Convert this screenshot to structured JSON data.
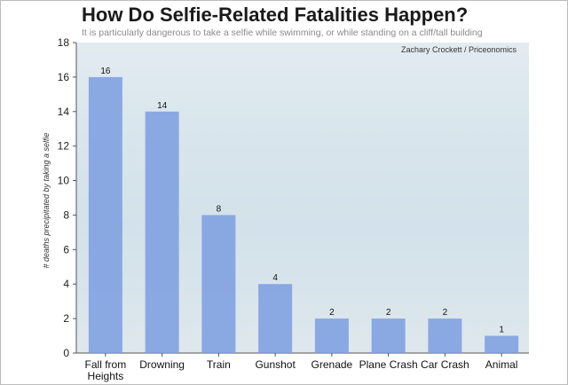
{
  "chart_data": {
    "type": "bar",
    "title": "How Do Selfie-Related Fatalities Happen?",
    "subtitle": "It is particularly dangerous to take a selfie while swimming, or while standing on a cliff/tall building",
    "source": "Zachary Crockett / Priceonomics",
    "xlabel": "",
    "ylabel": "# deaths precipitated by taking a selfie",
    "ylim": [
      0,
      18
    ],
    "yticks": [
      0,
      2,
      4,
      6,
      8,
      10,
      12,
      14,
      16,
      18
    ],
    "grid": false,
    "bar_color": "#7b9ee0",
    "categories": [
      "Fall from Heights",
      "Drowning",
      "Train",
      "Gunshot",
      "Grenade",
      "Plane Crash",
      "Car Crash",
      "Animal"
    ],
    "category_lines": [
      [
        "Fall from",
        "Heights"
      ],
      [
        "Drowning"
      ],
      [
        "Train"
      ],
      [
        "Gunshot"
      ],
      [
        "Grenade"
      ],
      [
        "Plane Crash"
      ],
      [
        "Car Crash"
      ],
      [
        "Animal"
      ]
    ],
    "values": [
      16,
      14,
      8,
      4,
      2,
      2,
      2,
      1
    ]
  }
}
